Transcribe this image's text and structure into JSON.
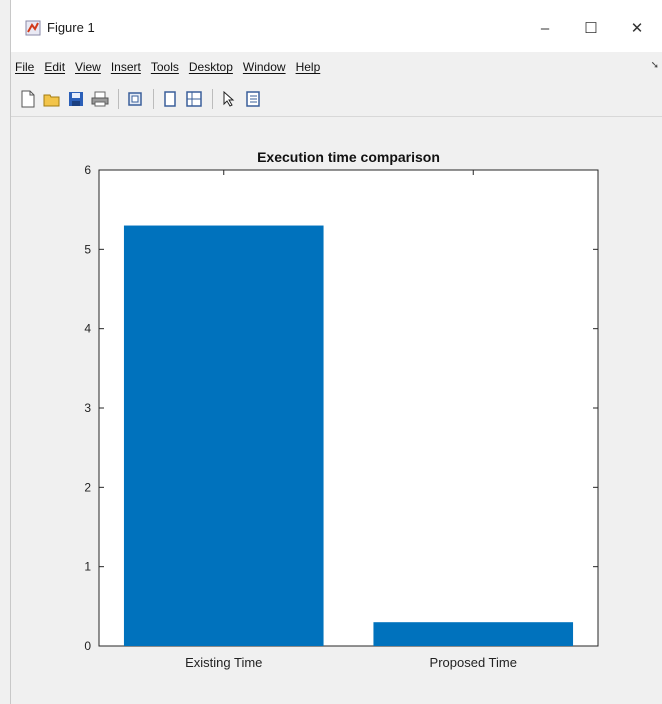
{
  "window": {
    "title": "Figure 1",
    "controls": {
      "minimize": "–",
      "maximize": "☐",
      "close": "✕"
    }
  },
  "menubar": {
    "items": [
      "File",
      "Edit",
      "View",
      "Insert",
      "Tools",
      "Desktop",
      "Window",
      "Help"
    ],
    "dock_arrow": "➘"
  },
  "toolbar": {
    "icons": [
      "new-figure-icon",
      "open-file-icon",
      "save-icon",
      "print-icon",
      "link-plot-icon",
      "hide-plot-tools-icon",
      "show-plot-tools-icon",
      "edit-plot-icon",
      "property-inspector-icon"
    ]
  },
  "colors": {
    "bar": "#0072BD",
    "axes_bg": "#ffffff",
    "figure_bg": "#f0f0f0"
  },
  "chart_data": {
    "type": "bar",
    "title": "Execution time comparison",
    "categories": [
      "Existing Time",
      "Proposed Time"
    ],
    "values": [
      5.3,
      0.3
    ],
    "xlabel": "",
    "ylabel": "",
    "ylim": [
      0,
      6
    ],
    "yticks": [
      0,
      1,
      2,
      3,
      4,
      5,
      6
    ],
    "grid": false,
    "legend": "none"
  }
}
